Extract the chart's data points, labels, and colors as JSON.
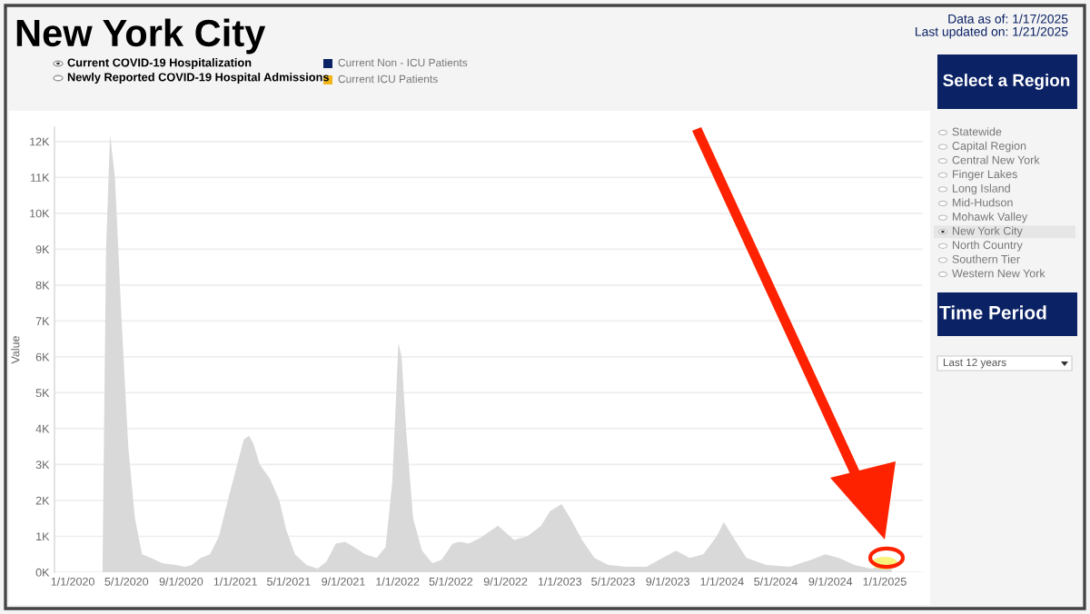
{
  "chart_data": {
    "type": "area",
    "title": "New York City",
    "ylabel": "Value",
    "annotations": [
      "Data as of: 1/17/2025",
      "Last updated on: 1/21/2025",
      "Current COVID-19 Hospitalization",
      "Newly Reported COVID-19 Hospital Admissions",
      "Current Non - ICU Patients",
      "Current ICU Patients",
      "Select a Region",
      "Statewide",
      "Capital Region",
      "Central New York",
      "Finger Lakes",
      "Long Island",
      "Mid-Hudson",
      "Mohawk Valley",
      "New York City",
      "North Country",
      "Southern Tier",
      "Western New York",
      "Time Period",
      "Last 12 years"
    ],
    "x": [
      "2020-03-08",
      "2020-03-16",
      "2020-03-25",
      "2020-04-05",
      "2020-04-20",
      "2020-05-05",
      "2020-05-20",
      "2020-06-05",
      "2020-06-25",
      "2020-07-20",
      "2020-08-20",
      "2020-09-10",
      "2020-09-25",
      "2020-10-15",
      "2020-11-05",
      "2020-11-25",
      "2020-12-15",
      "2021-01-05",
      "2021-01-20",
      "2021-02-01",
      "2021-02-10",
      "2021-02-25",
      "2021-03-20",
      "2021-04-10",
      "2021-04-25",
      "2021-05-15",
      "2021-06-10",
      "2021-07-05",
      "2021-07-25",
      "2021-08-15",
      "2021-09-05",
      "2021-09-25",
      "2021-10-20",
      "2021-11-15",
      "2021-12-05",
      "2021-12-20",
      "2022-01-03",
      "2022-01-10",
      "2022-01-20",
      "2022-02-05",
      "2022-02-25",
      "2022-03-20",
      "2022-04-10",
      "2022-05-05",
      "2022-05-20",
      "2022-06-10",
      "2022-07-05",
      "2022-08-15",
      "2022-09-20",
      "2022-10-20",
      "2022-11-20",
      "2022-12-10",
      "2023-01-05",
      "2023-01-25",
      "2023-02-20",
      "2023-03-20",
      "2023-04-20",
      "2023-06-01",
      "2023-07-15",
      "2023-08-20",
      "2023-09-20",
      "2023-10-20",
      "2023-11-20",
      "2023-12-20",
      "2024-01-05",
      "2024-01-25",
      "2024-02-25",
      "2024-04-10",
      "2024-06-01",
      "2024-07-20",
      "2024-08-20",
      "2024-09-20",
      "2024-10-25",
      "2024-12-01",
      "2025-01-10",
      "2025-01-17"
    ],
    "series": [
      {
        "color": "#d9d9d9",
        "values": [
          0,
          9000,
          12200,
          11000,
          7000,
          3500,
          1500,
          500,
          400,
          250,
          200,
          150,
          200,
          400,
          500,
          1000,
          2000,
          3000,
          3700,
          3800,
          3600,
          3000,
          2600,
          2000,
          1200,
          500,
          200,
          100,
          300,
          800,
          850,
          700,
          500,
          400,
          700,
          2500,
          6400,
          6000,
          4000,
          1500,
          600,
          250,
          350,
          800,
          850,
          800,
          950,
          1300,
          900,
          1000,
          1300,
          1700,
          1900,
          1500,
          900,
          400,
          200,
          150,
          150,
          400,
          600,
          400,
          500,
          1000,
          1400,
          1000,
          400,
          200,
          150,
          350,
          500,
          400,
          200,
          100,
          200,
          250
        ]
      }
    ],
    "xlim": [
      "2019-11-21",
      "2025-03-28"
    ],
    "xticks": [
      {
        "value": "2020-01-01",
        "label": "1/1/2020"
      },
      {
        "value": "2020-05-01",
        "label": "5/1/2020"
      },
      {
        "value": "2020-09-01",
        "label": "9/1/2020"
      },
      {
        "value": "2021-01-01",
        "label": "1/1/2021"
      },
      {
        "value": "2021-05-01",
        "label": "5/1/2021"
      },
      {
        "value": "2021-09-01",
        "label": "9/1/2021"
      },
      {
        "value": "2022-01-01",
        "label": "1/1/2022"
      },
      {
        "value": "2022-05-01",
        "label": "5/1/2022"
      },
      {
        "value": "2022-09-01",
        "label": "9/1/2022"
      },
      {
        "value": "2023-01-01",
        "label": "1/1/2023"
      },
      {
        "value": "2023-05-01",
        "label": "5/1/2023"
      },
      {
        "value": "2023-09-01",
        "label": "9/1/2023"
      },
      {
        "value": "2024-01-01",
        "label": "1/1/2024"
      },
      {
        "value": "2024-05-01",
        "label": "5/1/2024"
      },
      {
        "value": "2024-09-01",
        "label": "9/1/2024"
      },
      {
        "value": "2025-01-01",
        "label": "1/1/2025"
      }
    ],
    "ylim": [
      0,
      12400
    ],
    "yticks": [
      {
        "value": 0,
        "label": "0K"
      },
      {
        "value": 1000,
        "label": "1K"
      },
      {
        "value": 2000,
        "label": "2K"
      },
      {
        "value": 3000,
        "label": "3K"
      },
      {
        "value": 4000,
        "label": "4K"
      },
      {
        "value": 5000,
        "label": "5K"
      },
      {
        "value": 6000,
        "label": "6K"
      },
      {
        "value": 7000,
        "label": "7K"
      },
      {
        "value": 8000,
        "label": "8K"
      },
      {
        "value": 9000,
        "label": "9K"
      },
      {
        "value": 10000,
        "label": "10K"
      },
      {
        "value": 11000,
        "label": "11K"
      },
      {
        "value": 12000,
        "label": "12K"
      }
    ],
    "grid": "y",
    "legend": false
  }
}
